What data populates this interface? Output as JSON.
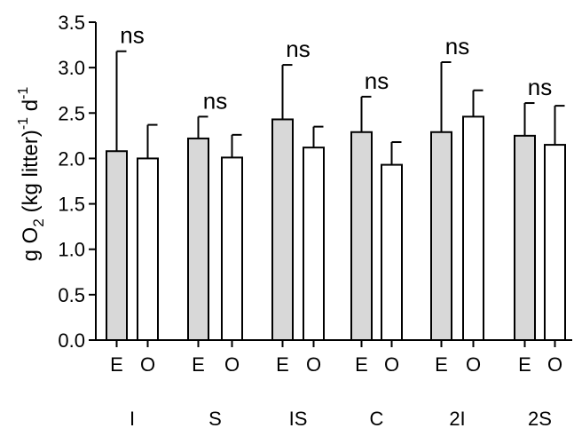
{
  "chart_data": {
    "type": "bar",
    "title": "",
    "xlabel": "",
    "ylabel": {
      "prefix": "g O",
      "sub": "2",
      "middle": " (kg litter)",
      "sup1": "-1",
      "end": " d",
      "sup2": "-1"
    },
    "ylim": [
      0,
      3.5
    ],
    "yticks": [
      "0.0",
      "0.5",
      "1.0",
      "1.5",
      "2.0",
      "2.5",
      "3.0",
      "3.5"
    ],
    "groups": [
      "I",
      "S",
      "IS",
      "C",
      "2I",
      "2S"
    ],
    "bar_labels": [
      "E",
      "O"
    ],
    "series": [
      {
        "label": "E",
        "fill": "#d8d8d8",
        "values": [
          2.08,
          2.22,
          2.43,
          2.29,
          2.29,
          2.25
        ],
        "errors": [
          1.1,
          0.24,
          0.6,
          0.39,
          0.77,
          0.36
        ]
      },
      {
        "label": "O",
        "fill": "#ffffff",
        "values": [
          2.0,
          2.01,
          2.12,
          1.93,
          2.46,
          2.15
        ],
        "errors": [
          0.37,
          0.25,
          0.23,
          0.25,
          0.29,
          0.43
        ]
      }
    ],
    "annotations": [
      "ns",
      "ns",
      "ns",
      "ns",
      "ns",
      "ns"
    ],
    "colors": {
      "bar_E": "#d8d8d8",
      "bar_O": "#ffffff",
      "stroke": "#000000"
    }
  }
}
